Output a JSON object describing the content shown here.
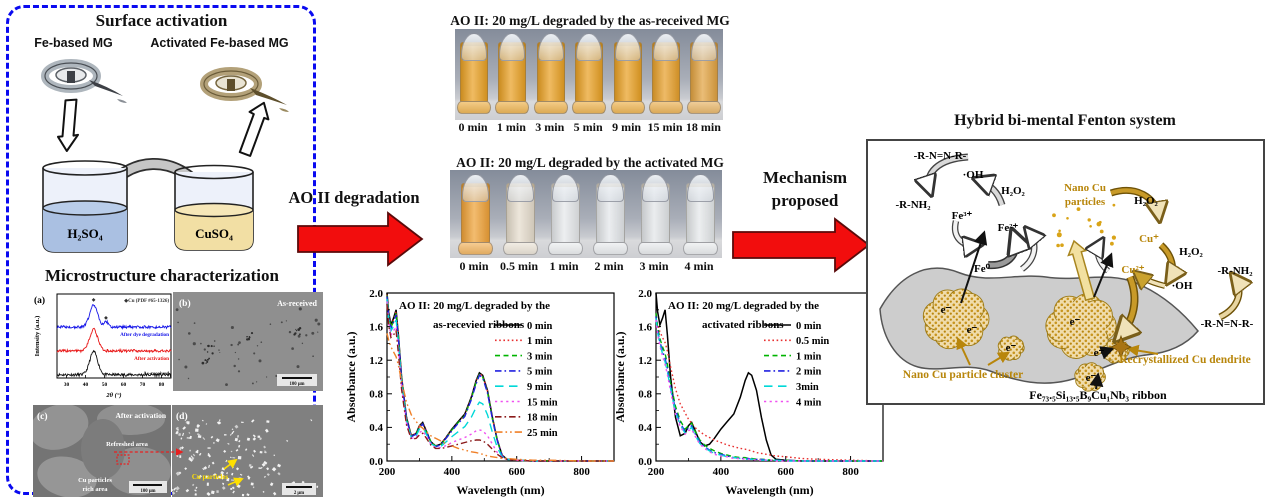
{
  "surface_activation": {
    "title": "Surface activation",
    "left_label": "Fe-based MG",
    "right_label": "Activated Fe-based MG",
    "beaker1": "H₂SO₄",
    "beaker2": "CuSO₄"
  },
  "microstructure": {
    "title": "Microstructure characterization",
    "panel_a": {
      "tag": "(a)",
      "legend": "◆Cu (PDF #65-1326)"
    },
    "panel_b": {
      "tag": "(b)",
      "label": "As-received",
      "scale": "100 μm"
    },
    "panel_c": {
      "tag": "(c)",
      "label": "After activation",
      "annotation1": "Refreshed area",
      "annotation2a": "Cu particles",
      "annotation2b": "rich area",
      "scale": "100 μm"
    },
    "panel_d": {
      "tag": "(d)",
      "label": "Cu particles",
      "scale": "2 μm"
    }
  },
  "photos": {
    "row1": {
      "title": "AO II: 20 mg/L degraded by the as-received MG ribbons",
      "times": [
        "0 min",
        "1 min",
        "3 min",
        "5 min",
        "9 min",
        "15 min",
        "18 min"
      ],
      "vial_colors": [
        "#e9a125",
        "#e9a125",
        "#e9a125",
        "#e9a125",
        "#e9a125",
        "#e7a02c",
        "#e2a342"
      ]
    },
    "row2": {
      "title": "AO II: 20 mg/L degraded by the activated MG ribbons",
      "times": [
        "0 min",
        "0.5 min",
        "1 min",
        "2 min",
        "3 min",
        "4 min"
      ],
      "vial_colors": [
        "#efa238",
        "#e6ddcd",
        "#e6e9eb",
        "#e4e7ea",
        "#e3e6e9",
        "#e5e8ea"
      ]
    }
  },
  "flow": {
    "step1": "AO II degradation",
    "step2_line1": "Mechanism",
    "step2_line2": "proposed",
    "arrow_color": "#f20d0d"
  },
  "mechanism": {
    "title": "Hybrid bi-mental Fenton system",
    "rnnr": "-R-N=N-R-",
    "oh": "·OH",
    "h2o2": "H₂O₂",
    "rnh2": "-R-NH₂",
    "fe3": "Fe³⁺",
    "fe2": "Fe²⁺",
    "fe0": "Fe⁰",
    "nano_cu_1": "Nano Cu",
    "nano_cu_2": "particles",
    "cu1": "Cu⁺",
    "cu2": "Cu²⁺",
    "electron": "e⁻",
    "cluster_label": "Nano Cu particle cluster",
    "dendrite_label": "Recrystallized Cu dendrite",
    "ribbon_label": "Fe₇₃.₅Si₁₃.₅B₉Cu₁Nb₃ ribbon",
    "gold": "#b8860b"
  },
  "chart_data": [
    {
      "type": "line",
      "panel": "(a)",
      "legend": "◆Cu (PDF #65-1326)",
      "xlabel": "2θ (°)",
      "ylabel": "Intensity (a.u.)",
      "xlim": [
        25,
        85
      ],
      "xticks": [
        30,
        40,
        50,
        60,
        70,
        80
      ],
      "peak_center": 44.3,
      "peak2_center": 50.8,
      "series": [
        {
          "name": "As-received",
          "color": "#111111",
          "offset": 0.12,
          "peak_amp": 0.85,
          "peak2": false
        },
        {
          "name": "After activation",
          "color": "#e81414",
          "offset": 1.0,
          "peak_amp": 0.8,
          "peak2": false
        },
        {
          "name": "After dye degradation",
          "color": "#1414e8",
          "offset": 1.88,
          "peak_amp": 0.8,
          "peak2": true
        }
      ]
    },
    {
      "type": "line",
      "title_line1": "AO II: 20 mg/L degraded by the",
      "title_line2": "as-recevied ribbons",
      "xlabel": "Wavelength (nm)",
      "ylabel": "Absorbance (a.u.)",
      "xlim": [
        200,
        900
      ],
      "ylim": [
        0,
        2.0
      ],
      "xticks": [
        200,
        400,
        600,
        800
      ],
      "xticks_minor": [
        300,
        500,
        700,
        900
      ],
      "yticks": [
        0.0,
        0.4,
        0.8,
        1.2,
        1.6,
        2.0
      ],
      "x": [
        200,
        205,
        212,
        220,
        228,
        235,
        245,
        260,
        275,
        290,
        300,
        310,
        320,
        335,
        350,
        365,
        380,
        400,
        420,
        440,
        460,
        475,
        485,
        495,
        510,
        525,
        540,
        555,
        570,
        600,
        650,
        700,
        800,
        900
      ],
      "series": [
        {
          "name": "0 min",
          "color": "#000000",
          "dash": "solid",
          "values": [
            2.0,
            1.78,
            1.62,
            1.7,
            1.8,
            1.5,
            1.0,
            0.52,
            0.3,
            0.33,
            0.42,
            0.46,
            0.37,
            0.23,
            0.18,
            0.2,
            0.27,
            0.38,
            0.47,
            0.56,
            0.76,
            0.96,
            1.05,
            1.02,
            0.84,
            0.52,
            0.25,
            0.07,
            0.02,
            0.01,
            0.0,
            0.0,
            0.0,
            0.0
          ]
        },
        {
          "name": "1 min",
          "color": "#e83030",
          "dash": "dot",
          "values": [
            1.98,
            1.76,
            1.6,
            1.68,
            1.78,
            1.49,
            0.99,
            0.51,
            0.3,
            0.33,
            0.41,
            0.45,
            0.37,
            0.23,
            0.18,
            0.2,
            0.27,
            0.37,
            0.46,
            0.55,
            0.75,
            0.95,
            1.04,
            1.01,
            0.83,
            0.51,
            0.25,
            0.07,
            0.02,
            0.01,
            0,
            0,
            0,
            0
          ]
        },
        {
          "name": "3 min",
          "color": "#00b400",
          "dash": "dash",
          "values": [
            1.97,
            1.75,
            1.59,
            1.66,
            1.76,
            1.47,
            0.98,
            0.5,
            0.29,
            0.32,
            0.41,
            0.44,
            0.36,
            0.23,
            0.18,
            0.19,
            0.26,
            0.37,
            0.46,
            0.54,
            0.74,
            0.94,
            1.03,
            1.0,
            0.82,
            0.5,
            0.24,
            0.06,
            0.02,
            0.01,
            0,
            0,
            0,
            0
          ]
        },
        {
          "name": "5 min",
          "color": "#2020e0",
          "dash": "dashdot",
          "values": [
            1.96,
            1.74,
            1.58,
            1.65,
            1.74,
            1.46,
            0.97,
            0.5,
            0.29,
            0.32,
            0.4,
            0.44,
            0.36,
            0.22,
            0.17,
            0.19,
            0.26,
            0.36,
            0.45,
            0.53,
            0.73,
            0.92,
            1.02,
            0.99,
            0.81,
            0.5,
            0.24,
            0.06,
            0.02,
            0.01,
            0,
            0,
            0,
            0
          ]
        },
        {
          "name": "9 min",
          "color": "#00d8d8",
          "dash": "longdash",
          "values": [
            1.93,
            1.7,
            1.55,
            1.6,
            1.68,
            1.4,
            0.93,
            0.48,
            0.28,
            0.3,
            0.38,
            0.41,
            0.33,
            0.21,
            0.17,
            0.17,
            0.22,
            0.29,
            0.35,
            0.41,
            0.52,
            0.64,
            0.7,
            0.68,
            0.55,
            0.34,
            0.16,
            0.05,
            0.02,
            0.01,
            0,
            0,
            0,
            0
          ]
        },
        {
          "name": "15 min",
          "color": "#f050f0",
          "dash": "dot2",
          "values": [
            1.9,
            1.66,
            1.5,
            1.55,
            1.6,
            1.33,
            0.88,
            0.45,
            0.27,
            0.28,
            0.34,
            0.36,
            0.3,
            0.2,
            0.16,
            0.16,
            0.18,
            0.22,
            0.25,
            0.28,
            0.32,
            0.36,
            0.37,
            0.36,
            0.3,
            0.2,
            0.1,
            0.04,
            0.02,
            0.01,
            0,
            0,
            0,
            0
          ]
        },
        {
          "name": "18 min",
          "color": "#8b1a1a",
          "dash": "dashdot",
          "values": [
            1.87,
            1.62,
            1.47,
            1.5,
            1.55,
            1.28,
            0.85,
            0.43,
            0.26,
            0.27,
            0.31,
            0.33,
            0.28,
            0.19,
            0.15,
            0.15,
            0.16,
            0.18,
            0.2,
            0.22,
            0.24,
            0.25,
            0.25,
            0.24,
            0.2,
            0.14,
            0.08,
            0.04,
            0.02,
            0.01,
            0,
            0,
            0,
            0
          ]
        },
        {
          "name": "25 min",
          "color": "#f08028",
          "dash": "dashdotdot",
          "values": [
            1.52,
            1.44,
            1.36,
            1.3,
            1.24,
            1.14,
            0.95,
            0.7,
            0.55,
            0.47,
            0.42,
            0.39,
            0.35,
            0.3,
            0.27,
            0.24,
            0.21,
            0.18,
            0.15,
            0.13,
            0.11,
            0.1,
            0.09,
            0.08,
            0.06,
            0.05,
            0.04,
            0.03,
            0.03,
            0.02,
            0.01,
            0.01,
            0,
            0
          ]
        }
      ]
    },
    {
      "type": "line",
      "title_line1": "AO II: 20 mg/L degraded by the",
      "title_line2": "activated ribbons",
      "xlabel": "Wavelength (nm)",
      "ylabel": "Absorbance (a.u.)",
      "xlim": [
        200,
        900
      ],
      "ylim": [
        0,
        2.0
      ],
      "xticks": [
        200,
        400,
        600,
        800
      ],
      "xticks_minor": [
        300,
        500,
        700,
        900
      ],
      "yticks": [
        0.0,
        0.4,
        0.8,
        1.2,
        1.6,
        2.0
      ],
      "x": [
        200,
        205,
        212,
        220,
        228,
        235,
        245,
        260,
        275,
        290,
        300,
        310,
        320,
        335,
        350,
        365,
        380,
        400,
        420,
        440,
        460,
        475,
        485,
        495,
        510,
        525,
        540,
        555,
        570,
        600,
        650,
        700,
        800,
        900
      ],
      "series": [
        {
          "name": "0 min",
          "color": "#000000",
          "dash": "solid",
          "values": [
            2.0,
            1.78,
            1.62,
            1.7,
            1.8,
            1.5,
            1.0,
            0.52,
            0.3,
            0.33,
            0.42,
            0.46,
            0.37,
            0.23,
            0.18,
            0.2,
            0.27,
            0.38,
            0.47,
            0.56,
            0.76,
            0.96,
            1.05,
            1.02,
            0.84,
            0.52,
            0.25,
            0.07,
            0.02,
            0.01,
            0.0,
            0.0,
            0.0,
            0.0
          ]
        },
        {
          "name": "0.5 min",
          "color": "#e83030",
          "dash": "dot",
          "values": [
            1.7,
            1.62,
            1.54,
            1.47,
            1.41,
            1.31,
            1.12,
            0.86,
            0.68,
            0.57,
            0.5,
            0.45,
            0.4,
            0.35,
            0.31,
            0.28,
            0.25,
            0.22,
            0.19,
            0.17,
            0.15,
            0.14,
            0.13,
            0.12,
            0.1,
            0.09,
            0.08,
            0.07,
            0.06,
            0.05,
            0.03,
            0.02,
            0.01,
            0.0
          ]
        },
        {
          "name": "1 min",
          "color": "#00b400",
          "dash": "dash",
          "values": [
            1.76,
            1.6,
            1.46,
            1.36,
            1.28,
            1.15,
            0.93,
            0.65,
            0.48,
            0.38,
            0.42,
            0.45,
            0.36,
            0.25,
            0.19,
            0.15,
            0.12,
            0.09,
            0.07,
            0.05,
            0.04,
            0.04,
            0.03,
            0.03,
            0.02,
            0.02,
            0.02,
            0.01,
            0.01,
            0.01,
            0,
            0,
            0,
            0
          ]
        },
        {
          "name": "2 min",
          "color": "#2020e0",
          "dash": "dashdot",
          "values": [
            1.72,
            1.56,
            1.42,
            1.31,
            1.22,
            1.1,
            0.89,
            0.61,
            0.45,
            0.35,
            0.39,
            0.42,
            0.33,
            0.23,
            0.17,
            0.13,
            0.1,
            0.08,
            0.06,
            0.04,
            0.03,
            0.03,
            0.03,
            0.02,
            0.02,
            0.02,
            0.01,
            0.01,
            0.01,
            0.01,
            0,
            0,
            0,
            0
          ]
        },
        {
          "name": "3min",
          "color": "#00d8d8",
          "dash": "longdash",
          "values": [
            1.7,
            1.53,
            1.39,
            1.28,
            1.18,
            1.06,
            0.86,
            0.58,
            0.43,
            0.33,
            0.37,
            0.4,
            0.31,
            0.21,
            0.16,
            0.12,
            0.09,
            0.07,
            0.05,
            0.04,
            0.03,
            0.02,
            0.02,
            0.02,
            0.02,
            0.01,
            0.01,
            0.01,
            0.01,
            0,
            0,
            0,
            0,
            0
          ]
        },
        {
          "name": "4 min",
          "color": "#f050f0",
          "dash": "dot2",
          "values": [
            1.68,
            1.51,
            1.37,
            1.25,
            1.15,
            1.03,
            0.83,
            0.56,
            0.41,
            0.32,
            0.36,
            0.38,
            0.3,
            0.2,
            0.15,
            0.11,
            0.08,
            0.06,
            0.05,
            0.03,
            0.03,
            0.02,
            0.02,
            0.02,
            0.01,
            0.01,
            0.01,
            0.01,
            0,
            0,
            0,
            0,
            0,
            0
          ]
        }
      ]
    }
  ]
}
